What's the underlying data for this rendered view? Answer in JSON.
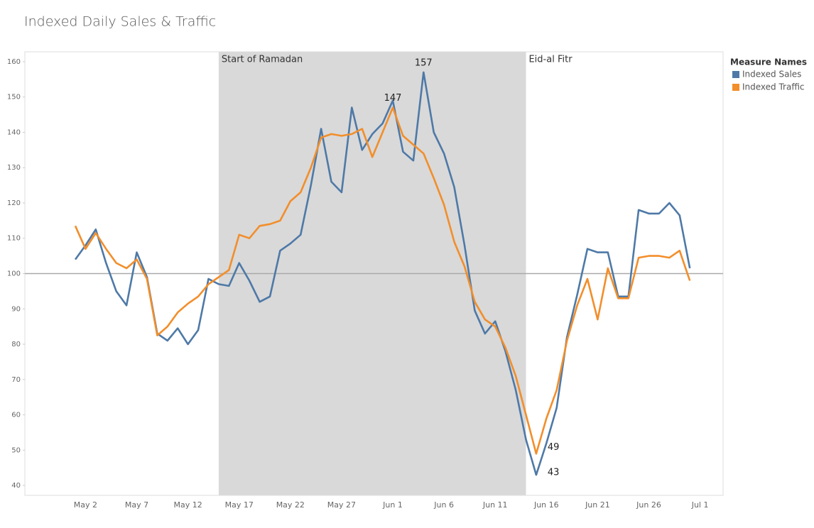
{
  "chart_data": {
    "type": "line",
    "title": "Indexed Daily Sales & Traffic",
    "legend_title": "Measure Names",
    "legend": "right",
    "categories": [
      null,
      "May 2",
      null,
      null,
      null,
      null,
      "May 7",
      null,
      null,
      null,
      null,
      "May 12",
      null,
      null,
      null,
      null,
      "May 17",
      null,
      null,
      null,
      null,
      "May 22",
      null,
      null,
      null,
      null,
      "May 27",
      null,
      null,
      null,
      null,
      "Jun 1",
      null,
      null,
      null,
      null,
      "Jun 6",
      null,
      null,
      null,
      null,
      "Jun 11",
      null,
      null,
      null,
      null,
      "Jun 16",
      null,
      null,
      null,
      null,
      "Jun 21",
      null,
      null,
      null,
      null,
      "Jun 26",
      null,
      null,
      null,
      null,
      "Jul 1"
    ],
    "series": [
      {
        "name": "Indexed Sales",
        "color": "#4e79a7",
        "values": [
          104,
          108,
          112.5,
          103,
          95,
          91,
          106,
          99,
          83,
          81,
          84.5,
          80,
          84,
          98.5,
          97,
          96.5,
          103,
          98,
          92,
          93.5,
          106.5,
          108.5,
          111,
          125,
          141,
          126,
          123,
          147,
          135,
          139.5,
          142.5,
          149,
          134.5,
          132,
          157,
          140,
          134,
          124.5,
          108,
          89.5,
          83,
          86.5,
          78,
          67,
          53,
          43,
          52,
          62,
          82,
          94,
          107,
          106,
          106,
          93.5,
          93.5,
          118,
          117,
          117,
          120,
          116.5,
          101.5,
          null
        ],
        "value_labels": [
          null,
          null,
          null,
          null,
          null,
          null,
          null,
          null,
          null,
          null,
          null,
          null,
          null,
          null,
          null,
          null,
          null,
          null,
          null,
          null,
          null,
          null,
          null,
          null,
          null,
          null,
          null,
          null,
          null,
          null,
          null,
          null,
          null,
          null,
          "157",
          null,
          null,
          null,
          null,
          null,
          null,
          null,
          null,
          null,
          null,
          "43",
          null,
          null,
          null,
          null,
          null,
          null,
          null,
          null,
          null,
          null,
          null,
          null,
          null,
          null,
          null,
          null
        ]
      },
      {
        "name": "Indexed Traffic",
        "color": "#f28e2b",
        "values": [
          113.5,
          107,
          111.5,
          107,
          103,
          101.5,
          104,
          98.5,
          82.5,
          85,
          89,
          91.5,
          93.5,
          97,
          99,
          101,
          111,
          110,
          113.5,
          114,
          115,
          120.5,
          123,
          130,
          138.5,
          139.5,
          139,
          139.5,
          141,
          133,
          140,
          147,
          139,
          136.5,
          134,
          127,
          119.5,
          109,
          102,
          92,
          87,
          85,
          79,
          71,
          60,
          49,
          59,
          67,
          81,
          91,
          98.5,
          87,
          101.5,
          93,
          93,
          104.5,
          105,
          105,
          104.5,
          106.5,
          98,
          null
        ],
        "value_labels": [
          null,
          null,
          null,
          null,
          null,
          null,
          null,
          null,
          null,
          null,
          null,
          null,
          null,
          null,
          null,
          null,
          null,
          null,
          null,
          null,
          null,
          null,
          null,
          null,
          null,
          null,
          null,
          null,
          null,
          null,
          null,
          "147",
          null,
          null,
          null,
          null,
          null,
          null,
          null,
          null,
          null,
          null,
          null,
          null,
          null,
          "49",
          null,
          null,
          null,
          null,
          null,
          null,
          null,
          null,
          null,
          null,
          null,
          null,
          null,
          null,
          null,
          null
        ]
      }
    ],
    "shaded_range": [
      14,
      44
    ],
    "shaded_label": "Start of Ramadan",
    "shaded_end_label": "Eid-al Fitr",
    "reference_line": 100,
    "ylim": [
      37.2,
      162.8
    ],
    "yticks": [
      40,
      50,
      60,
      70,
      80,
      90,
      100,
      110,
      120,
      130,
      140,
      150,
      160
    ],
    "grid": false
  }
}
